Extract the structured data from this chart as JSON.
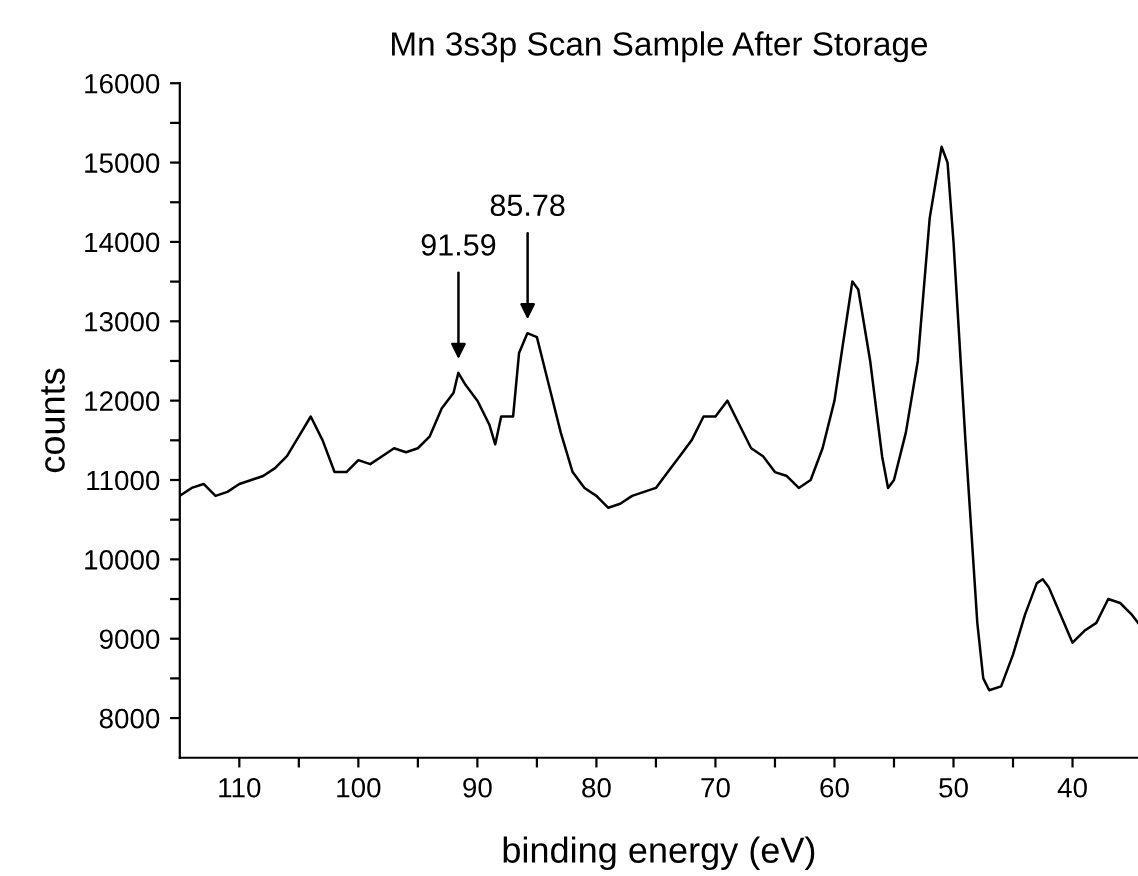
{
  "chart_data": {
    "type": "line",
    "title": "Mn 3s3p Scan Sample After Storage",
    "xlabel": "binding energy (eV)",
    "ylabel": "counts",
    "x": [
      115,
      114,
      113,
      112,
      111,
      110,
      109,
      108,
      107,
      106,
      105,
      104,
      103,
      102,
      101,
      100,
      99,
      98,
      97,
      96,
      95,
      94,
      93,
      92,
      91.6,
      91,
      90,
      89,
      88.5,
      88,
      87,
      86.5,
      85.8,
      85,
      84,
      83,
      82,
      81,
      80,
      79,
      78,
      77,
      76,
      75,
      74,
      73,
      72,
      71,
      70,
      69,
      68,
      67,
      66,
      65,
      64,
      63,
      62,
      61,
      60,
      59,
      58.5,
      58,
      57,
      56,
      55.5,
      55,
      54,
      53,
      52,
      51,
      50.5,
      50,
      49,
      48,
      47.5,
      47,
      46,
      45,
      44,
      43,
      42.5,
      42,
      41,
      40,
      39,
      38,
      37,
      36,
      35,
      34.5
    ],
    "series": [
      {
        "color": "#000000",
        "values": [
          10800,
          10900,
          10950,
          10800,
          10850,
          10950,
          11000,
          11050,
          11150,
          11300,
          11550,
          11800,
          11500,
          11100,
          11100,
          11250,
          11200,
          11300,
          11400,
          11350,
          11400,
          11550,
          11900,
          12100,
          12350,
          12200,
          12000,
          11700,
          11450,
          11800,
          11800,
          12600,
          12850,
          12800,
          12200,
          11600,
          11100,
          10900,
          10800,
          10650,
          10700,
          10800,
          10850,
          10900,
          11100,
          11300,
          11500,
          11800,
          11800,
          12000,
          11700,
          11400,
          11300,
          11100,
          11050,
          10900,
          11000,
          11400,
          12000,
          13000,
          13500,
          13400,
          12500,
          11300,
          10900,
          11000,
          11600,
          12500,
          14300,
          15200,
          15000,
          14000,
          11500,
          9200,
          8500,
          8350,
          8400,
          8800,
          9300,
          9700,
          9750,
          9650,
          9300,
          8950,
          9100,
          9200,
          9500,
          9450,
          9300,
          9200
        ]
      }
    ],
    "annotations": [
      {
        "text": "91.59",
        "x": 91.59,
        "y": 12350
      },
      {
        "text": "85.78",
        "x": 85.78,
        "y": 12850
      }
    ],
    "xlim": [
      115,
      34.5
    ],
    "xticks": [
      110,
      {
        "value": 105,
        "label": null
      },
      100,
      {
        "value": 95,
        "label": null
      },
      90,
      {
        "value": 85,
        "label": null
      },
      80,
      {
        "value": 75,
        "label": null
      },
      70,
      {
        "value": 65,
        "label": null
      },
      60,
      {
        "value": 55,
        "label": null
      },
      50,
      {
        "value": 45,
        "label": null
      },
      40
    ],
    "ylim": [
      7500,
      16000
    ],
    "yticks": [
      8000,
      {
        "value": 8500,
        "label": null
      },
      9000,
      {
        "value": 9500,
        "label": null
      },
      10000,
      {
        "value": 10500,
        "label": null
      },
      11000,
      {
        "value": 11500,
        "label": null
      },
      12000,
      {
        "value": 12500,
        "label": null
      },
      13000,
      {
        "value": 13500,
        "label": null
      },
      14000,
      {
        "value": 14500,
        "label": null
      },
      15000,
      {
        "value": 15500,
        "label": null
      },
      16000
    ],
    "grid": false,
    "legend": false,
    "marker": "none",
    "line_style": "solid"
  }
}
